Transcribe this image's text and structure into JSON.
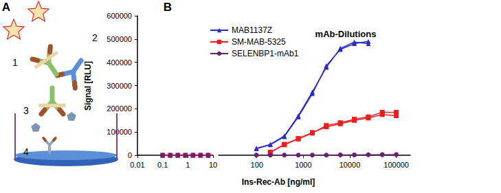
{
  "figure": {
    "panel_labels": [
      "A",
      "B"
    ]
  },
  "diagram": {
    "labels": [
      "1",
      "2",
      "3",
      "4"
    ]
  },
  "chart_data": [
    {
      "type": "line",
      "y_label": "Signal [RLU]",
      "log": "x",
      "xlim": [
        0.01,
        10
      ],
      "xticks": [
        0.01,
        0.1,
        1,
        10
      ],
      "ylim": [
        0,
        600000
      ],
      "yticks": [
        0,
        100000,
        200000,
        300000,
        400000,
        500000,
        600000
      ],
      "series": [
        {
          "color": "#2a2ac4",
          "marker": "triangle",
          "x": [
            0.1,
            0.2,
            0.4,
            0.8,
            1.6,
            3.2,
            6.4
          ],
          "values": [
            0,
            0,
            0,
            0,
            0,
            0,
            0
          ]
        },
        {
          "color": "#ee1c1c",
          "marker": "square",
          "x": [
            0.1,
            0.2,
            0.4,
            0.8,
            1.6,
            3.2,
            6.4
          ],
          "values": [
            0,
            0,
            0,
            0,
            0,
            0,
            0
          ]
        },
        {
          "color": "#6a1f78",
          "marker": "circle",
          "x": [
            0.1,
            0.2,
            0.4,
            0.8,
            1.6,
            3.2,
            6.4
          ],
          "values": [
            0,
            0,
            0,
            0,
            0,
            0,
            0
          ]
        }
      ]
    },
    {
      "type": "line",
      "title": "mAb-Dilutions",
      "x_label": "Ins-Rec-Ab [ng/ml]",
      "log": "x",
      "xlim": [
        15,
        200000
      ],
      "xticks": [
        100,
        1000,
        10000,
        100000
      ],
      "ylim": [
        0,
        600000
      ],
      "tick_labels": "x",
      "legend": "upper left",
      "series": [
        {
          "name": "MAB1137Z",
          "color": "#2a2ac4",
          "marker": "triangle",
          "x": [
            98,
            195,
            391,
            781,
            1563,
            3125,
            6250,
            12500,
            25000
          ],
          "values": [
            28000,
            45000,
            80000,
            165000,
            265000,
            385000,
            455000,
            480000,
            490000
          ]
        },
        {
          "name": "MAB1137Z",
          "color": "#2a2ac4",
          "marker": "triangle",
          "x": [
            98,
            195,
            391,
            781,
            1563,
            3125,
            6250,
            12500,
            25000
          ],
          "values": [
            30000,
            47000,
            83000,
            170000,
            272000,
            378000,
            460000,
            487000,
            480000
          ]
        },
        {
          "name": "SM-MAB-5325",
          "color": "#ee1c1c",
          "marker": "square",
          "x": [
            195,
            391,
            781,
            1563,
            3125,
            6250,
            12500,
            25000,
            50000,
            100000
          ],
          "values": [
            12000,
            45000,
            70000,
            95000,
            128000,
            140000,
            155000,
            165000,
            185000,
            185000
          ]
        },
        {
          "name": "SM-MAB-5325",
          "color": "#ee1c1c",
          "marker": "square",
          "x": [
            195,
            391,
            781,
            1563,
            3125,
            6250,
            12500,
            25000,
            50000,
            100000
          ],
          "values": [
            13000,
            47000,
            72000,
            98000,
            122000,
            135000,
            150000,
            160000,
            175000,
            170000
          ]
        },
        {
          "name": "SELENBP1-mAb1",
          "color": "#6a1f78",
          "marker": "circle",
          "x": [
            98,
            195,
            391,
            781,
            1563,
            3125,
            6250,
            12500,
            25000,
            50000,
            100000
          ],
          "values": [
            500,
            500,
            600,
            700,
            800,
            1000,
            1200,
            1500,
            2000,
            2500,
            3000
          ]
        }
      ]
    }
  ]
}
